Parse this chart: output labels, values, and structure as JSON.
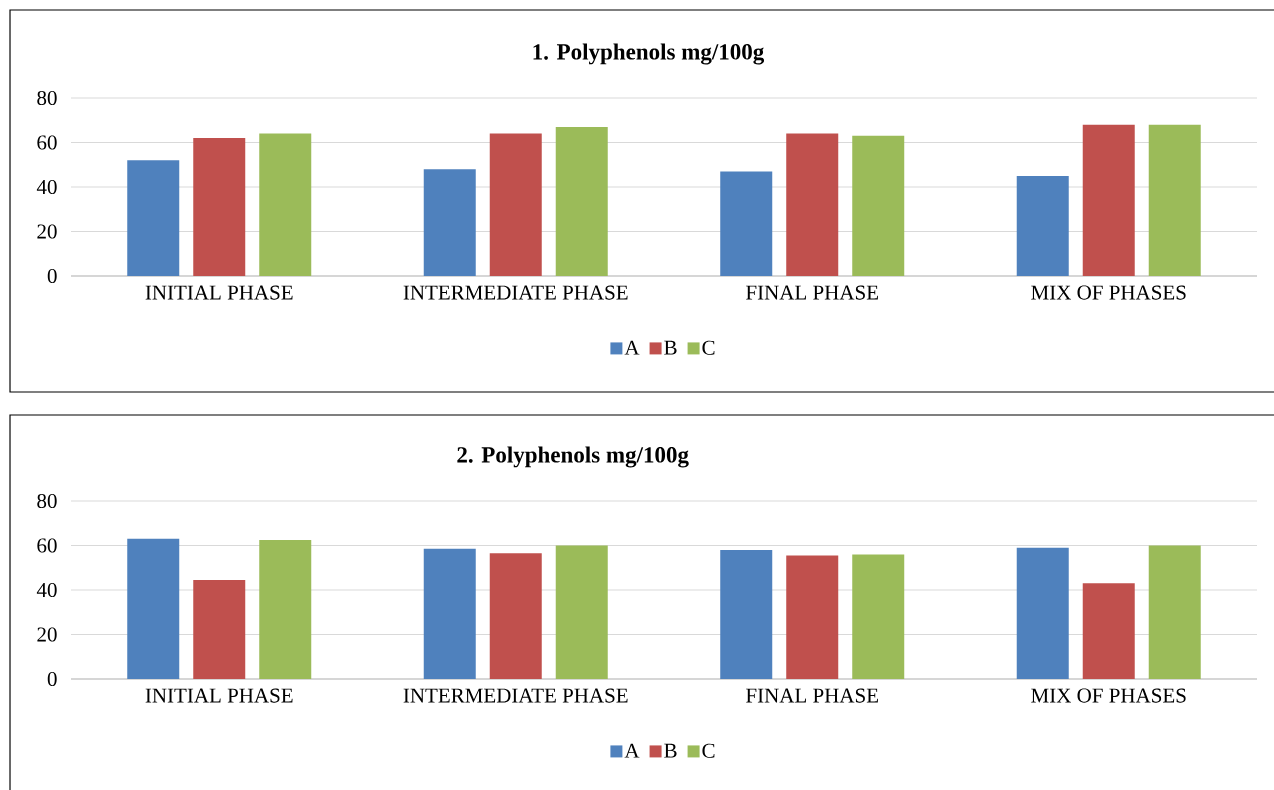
{
  "chart_data": [
    {
      "type": "bar",
      "title": "1. Polyphenols mg/100g",
      "categories": [
        "INITIAL PHASE",
        "INTERMEDIATE PHASE",
        "FINAL PHASE",
        "MIX OF PHASES"
      ],
      "series": [
        {
          "name": "A",
          "color": "#4f81bd",
          "values": [
            52,
            48,
            47,
            45
          ]
        },
        {
          "name": "B",
          "color": "#c0504d",
          "values": [
            62,
            64,
            64,
            68
          ]
        },
        {
          "name": "C",
          "color": "#9bbb59",
          "values": [
            64,
            67,
            63,
            68
          ]
        }
      ],
      "ylim": [
        0,
        80
      ],
      "yticks": [
        0,
        20,
        40,
        60,
        80
      ],
      "grid": "y",
      "legend": "bottom"
    },
    {
      "type": "bar",
      "title": "2. Polyphenols mg/100g",
      "categories": [
        "INITIAL PHASE",
        "INTERMEDIATE PHASE",
        "FINAL PHASE",
        "MIX OF PHASES"
      ],
      "series": [
        {
          "name": "A",
          "color": "#4f81bd",
          "values": [
            63,
            58.5,
            58,
            59
          ]
        },
        {
          "name": "B",
          "color": "#c0504d",
          "values": [
            44.5,
            56.5,
            55.5,
            43
          ]
        },
        {
          "name": "C",
          "color": "#9bbb59",
          "values": [
            62.5,
            60,
            56,
            60
          ]
        }
      ],
      "ylim": [
        0,
        80
      ],
      "yticks": [
        0,
        20,
        40,
        60,
        80
      ],
      "grid": "y",
      "legend": "bottom"
    }
  ]
}
